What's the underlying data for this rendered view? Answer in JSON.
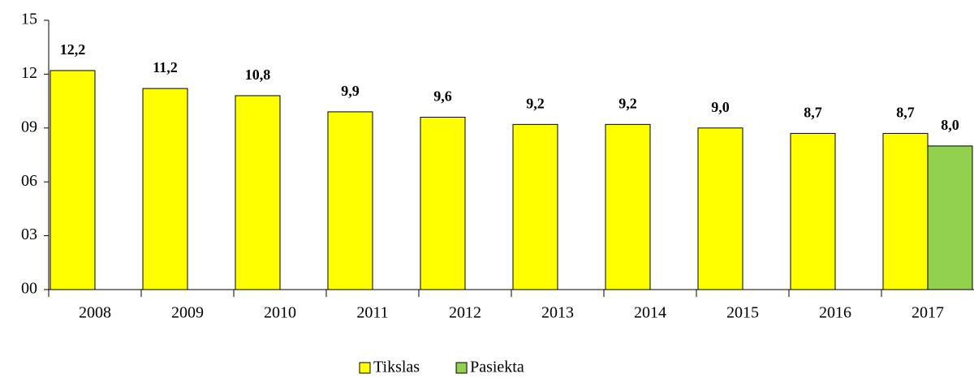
{
  "chart_data": {
    "type": "bar",
    "categories": [
      "2008",
      "2009",
      "2010",
      "2011",
      "2012",
      "2013",
      "2014",
      "2015",
      "2016",
      "2017"
    ],
    "series": [
      {
        "name": "Tikslas",
        "color": "#ffff00",
        "values": [
          12.2,
          11.2,
          10.8,
          9.9,
          9.6,
          9.2,
          9.2,
          9.0,
          8.7,
          8.7
        ],
        "value_labels": [
          "12,2",
          "11,2",
          "10,8",
          "9,9",
          "9,6",
          "9,2",
          "9,2",
          "9,0",
          "8,7",
          "8,7"
        ]
      },
      {
        "name": "Pasiekta",
        "color": "#92d050",
        "values": [
          null,
          null,
          null,
          null,
          null,
          null,
          null,
          null,
          null,
          8.0
        ],
        "value_labels": [
          null,
          null,
          null,
          null,
          null,
          null,
          null,
          null,
          null,
          "8,0"
        ]
      }
    ],
    "ylim": [
      0,
      15
    ],
    "yticks": [
      {
        "value": 0,
        "label": "00"
      },
      {
        "value": 3,
        "label": "03"
      },
      {
        "value": 6,
        "label": "06"
      },
      {
        "value": 9,
        "label": "09"
      },
      12,
      15
    ],
    "grid": false,
    "legend": "bottom"
  }
}
